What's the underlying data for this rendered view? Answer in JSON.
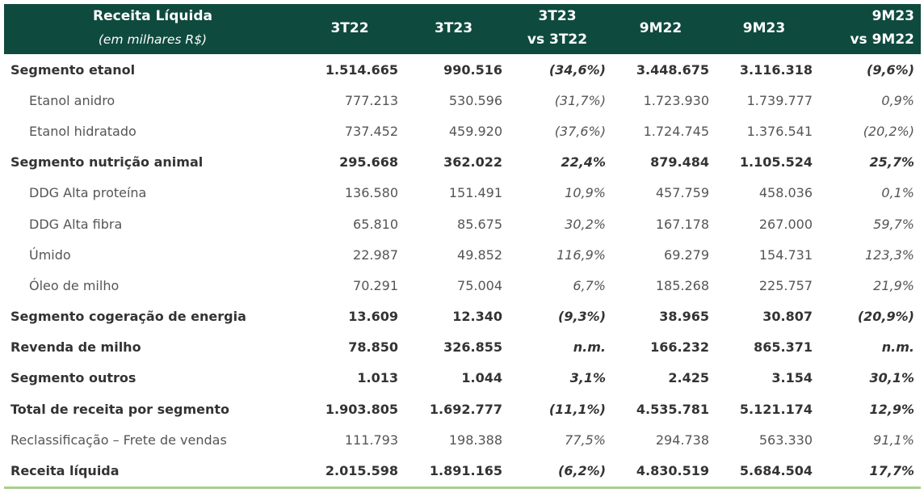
{
  "header": {
    "title": "Receita Líquida",
    "subtitle": "(em milhares R$)",
    "columns": [
      {
        "line1": "3T22",
        "line2": ""
      },
      {
        "line1": "3T23",
        "line2": ""
      },
      {
        "line1": "3T23",
        "line2": "vs 3T22"
      },
      {
        "line1": "9M22",
        "line2": ""
      },
      {
        "line1": "9M23",
        "line2": ""
      },
      {
        "line1": "9M23",
        "line2": "vs 9M22"
      }
    ]
  },
  "rows": [
    {
      "label": "Segmento etanol",
      "v": [
        "1.514.665",
        "990.516",
        "(34,6%)",
        "3.448.675",
        "3.116.318",
        "(9,6%)"
      ]
    },
    {
      "label": "Etanol anidro",
      "v": [
        "777.213",
        "530.596",
        "(31,7%)",
        "1.723.930",
        "1.739.777",
        "0,9%"
      ]
    },
    {
      "label": "Etanol hidratado",
      "v": [
        "737.452",
        "459.920",
        "(37,6%)",
        "1.724.745",
        "1.376.541",
        "(20,2%)"
      ]
    },
    {
      "label": "Segmento nutrição animal",
      "v": [
        "295.668",
        "362.022",
        "22,4%",
        "879.484",
        "1.105.524",
        "25,7%"
      ]
    },
    {
      "label": "DDG Alta proteína",
      "v": [
        "136.580",
        "151.491",
        "10,9%",
        "457.759",
        "458.036",
        "0,1%"
      ]
    },
    {
      "label": "DDG Alta fibra",
      "v": [
        "65.810",
        "85.675",
        "30,2%",
        "167.178",
        "267.000",
        "59,7%"
      ]
    },
    {
      "label": "Úmido",
      "v": [
        "22.987",
        "49.852",
        "116,9%",
        "69.279",
        "154.731",
        "123,3%"
      ]
    },
    {
      "label": "Óleo de milho",
      "v": [
        "70.291",
        "75.004",
        "6,7%",
        "185.268",
        "225.757",
        "21,9%"
      ]
    },
    {
      "label": "Segmento cogeração de energia",
      "v": [
        "13.609",
        "12.340",
        "(9,3%)",
        "38.965",
        "30.807",
        "(20,9%)"
      ]
    },
    {
      "label": "Revenda de milho",
      "v": [
        "78.850",
        "326.855",
        "n.m.",
        "166.232",
        "865.371",
        "n.m."
      ]
    },
    {
      "label": "Segmento outros",
      "v": [
        "1.013",
        "1.044",
        "3,1%",
        "2.425",
        "3.154",
        "30,1%"
      ]
    },
    {
      "label": "Total de receita por segmento",
      "v": [
        "1.903.805",
        "1.692.777",
        "(11,1%)",
        "4.535.781",
        "5.121.174",
        "12,9%"
      ]
    },
    {
      "label": "Reclassificação – Frete de vendas",
      "v": [
        "111.793",
        "198.388",
        "77,5%",
        "294.738",
        "563.330",
        "91,1%"
      ]
    },
    {
      "label": "Receita líquida",
      "v": [
        "2.015.598",
        "1.891.165",
        "(6,2%)",
        "4.830.519",
        "5.684.504",
        "17,7%"
      ]
    }
  ],
  "colors": {
    "header_bg": "#0f4a3e",
    "bottom_rule": "#a8cf8e"
  }
}
